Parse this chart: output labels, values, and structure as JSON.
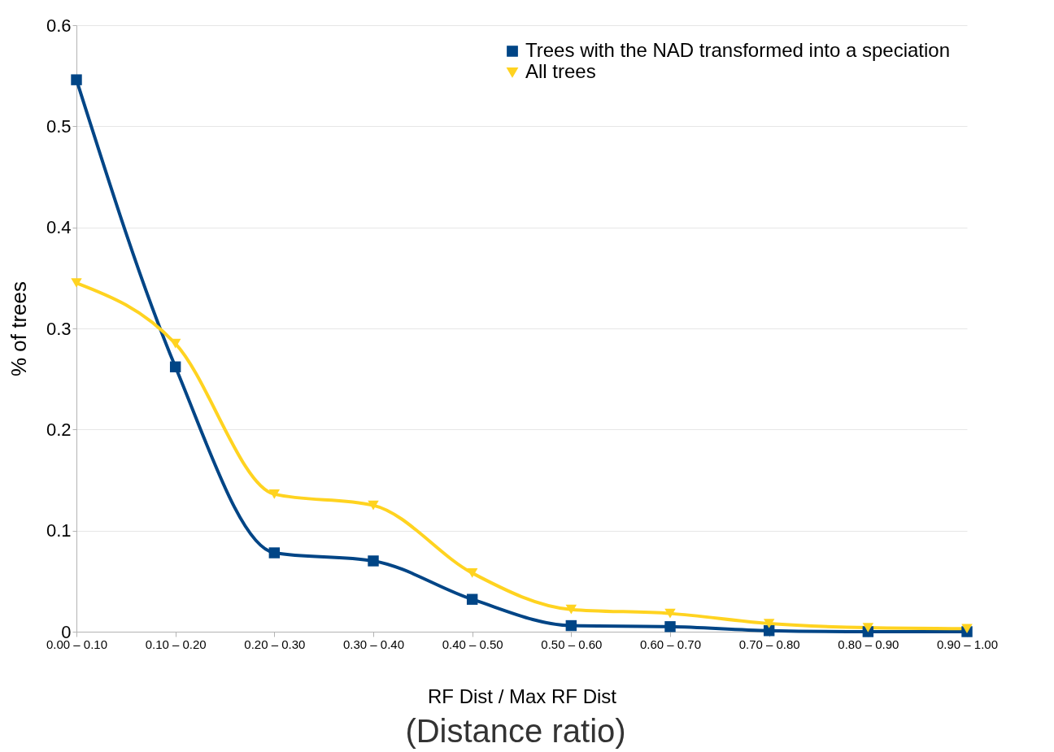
{
  "chart_data": {
    "type": "line",
    "xlabel": "RF Dist / Max RF Dist",
    "ylabel": "% of trees",
    "annotations": [
      "(Distance ratio)"
    ],
    "categories": [
      "0.00 – 0.10",
      "0.10 – 0.20",
      "0.20 – 0.30",
      "0.30 – 0.40",
      "0.40 – 0.50",
      "0.50 – 0.60",
      "0.60 – 0.70",
      "0.70 – 0.80",
      "0.80 – 0.90",
      "0.90 – 1.00"
    ],
    "series": [
      {
        "name": "Trees with the NAD transformed into a speciation",
        "color": "#004586",
        "marker": "square",
        "values": [
          0.546,
          0.262,
          0.078,
          0.07,
          0.032,
          0.006,
          0.005,
          0.001,
          0.0,
          0.0
        ]
      },
      {
        "name": "All trees",
        "color": "#ffd320",
        "marker": "triangle",
        "values": [
          0.345,
          0.285,
          0.136,
          0.125,
          0.058,
          0.022,
          0.018,
          0.008,
          0.004,
          0.003
        ]
      }
    ],
    "ylim": [
      0,
      0.6
    ],
    "yticks": [
      0,
      0.1,
      0.2,
      0.3,
      0.4,
      0.5,
      0.6
    ],
    "grid": "y",
    "legend": "top right"
  }
}
